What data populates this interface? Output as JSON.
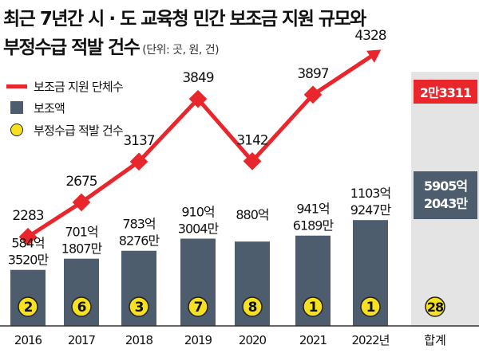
{
  "header": {
    "title_line1": "최근 7년간 시 · 도 교육청 민간 보조금 지원 규모와",
    "title_line2": "부정수급 적발 건수",
    "unit": "(단위: 곳, 원, 건)"
  },
  "legend": {
    "line_label": "보조금 지원 단체수",
    "bar_label": "보조액",
    "dot_label": "부정수급 적발 건수"
  },
  "totals": {
    "label": "합계",
    "subsidized": "2만3311",
    "amount_line1": "5905억",
    "amount_line2": "2043만",
    "violations": "28"
  },
  "colors": {
    "line": "#e8262b",
    "bar": "#4d5d6e",
    "dot": "#f7e01d",
    "total_column_bg": "#e4e4e4"
  },
  "chart_data": {
    "type": "bar",
    "categories": [
      "2016",
      "2017",
      "2018",
      "2019",
      "2020",
      "2021",
      "2022년"
    ],
    "series": [
      {
        "name": "보조금 지원 단체수",
        "type": "line",
        "values": [
          2283,
          2675,
          3137,
          3849,
          3142,
          3897,
          4328
        ]
      },
      {
        "name": "보조액",
        "type": "bar",
        "values": [
          584.352,
          701.1807,
          783.8276,
          910.3004,
          880,
          941.6189,
          1103.9247
        ],
        "labels": [
          [
            "584억",
            "3520만"
          ],
          [
            "701억",
            "1807만"
          ],
          [
            "783억",
            "8276만"
          ],
          [
            "910억",
            "3004만"
          ],
          [
            "880억",
            ""
          ],
          [
            "941억",
            "6189만"
          ],
          [
            "1103억",
            "9247만"
          ]
        ]
      },
      {
        "name": "부정수급 적발 건수",
        "type": "dot",
        "values": [
          2,
          6,
          3,
          7,
          8,
          1,
          1
        ]
      }
    ],
    "xlabel": "",
    "ylabel": "",
    "grid": false
  }
}
